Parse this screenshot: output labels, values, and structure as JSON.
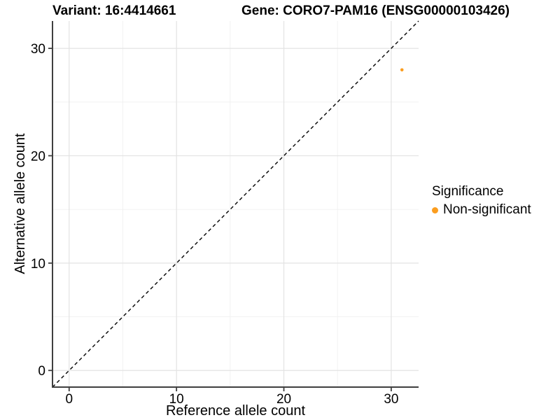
{
  "titles": {
    "variant": "Variant: 16:4414661",
    "gene": "Gene: CORO7-PAM16 (ENSG00000103426)"
  },
  "chart_data": {
    "type": "scatter",
    "title": "Variant: 16:4414661    Gene: CORO7-PAM16 (ENSG00000103426)",
    "xlabel": "Reference allele count",
    "ylabel": "Alternative allele count",
    "xlim": [
      -1.55,
      32.55
    ],
    "ylim": [
      -1.55,
      32.55
    ],
    "xticks": [
      0,
      10,
      20,
      30
    ],
    "yticks": [
      0,
      10,
      20,
      30
    ],
    "xticks_minor": [
      5,
      15,
      25
    ],
    "yticks_minor": [
      5,
      15,
      25
    ],
    "grid": true,
    "reference_line": {
      "label": "y = x identity line",
      "style": "dashed",
      "color": "#000000"
    },
    "series": [
      {
        "name": "Non-significant",
        "color": "#FB9D1F",
        "points": [
          [
            31,
            28
          ]
        ]
      }
    ],
    "legend": {
      "title": "Significance",
      "position": "right",
      "entries": [
        {
          "label": "Non-significant",
          "color": "#FB9D1F"
        }
      ]
    }
  },
  "colors": {
    "background": "#FFFFFF",
    "grid_major": "#E3E3E3",
    "grid_minor": "#F0F0F0",
    "axis_line": "#3F3F3F",
    "tick_mark": "#3F3F3F",
    "text": "#000000",
    "point_non_significant": "#FB9D1F"
  }
}
